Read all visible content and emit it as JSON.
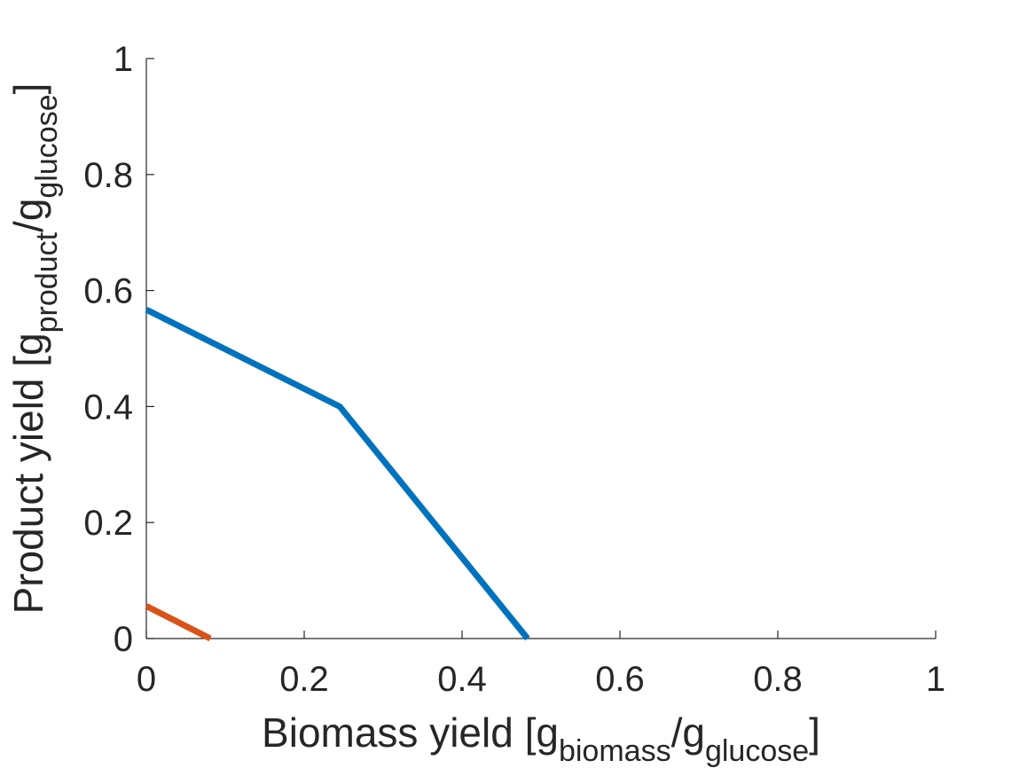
{
  "chart_data": {
    "type": "line",
    "xlabel": {
      "prefix": "Biomass yield [g",
      "sub1": "biomass",
      "mid": "/g",
      "sub2": "glucose",
      "suffix": "]"
    },
    "ylabel": {
      "prefix": "Product yield [g",
      "sub1": "product",
      "mid": "/g",
      "sub2": "glucose",
      "suffix": "]"
    },
    "xlim": [
      0,
      1
    ],
    "ylim": [
      0,
      1
    ],
    "xticks": [
      0,
      0.2,
      0.4,
      0.6,
      0.8,
      1
    ],
    "yticks": [
      0,
      0.2,
      0.4,
      0.6,
      0.8,
      1
    ],
    "xtick_labels": [
      "0",
      "0.2",
      "0.4",
      "0.6",
      "0.8",
      "1"
    ],
    "ytick_labels": [
      "0",
      "0.2",
      "0.4",
      "0.6",
      "0.8",
      "1"
    ],
    "grid": false,
    "series": [
      {
        "color": "#0072BD",
        "x": [
          0,
          0.245,
          0.483
        ],
        "y": [
          0.567,
          0.4,
          0
        ]
      },
      {
        "color": "#D95319",
        "x": [
          0,
          0.081
        ],
        "y": [
          0.056,
          0
        ]
      }
    ]
  }
}
